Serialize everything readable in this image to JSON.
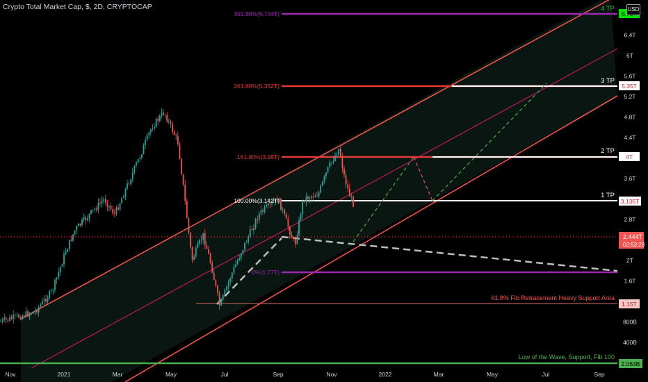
{
  "header": {
    "title": "Crypto Total Market Cap, $, 2D, CRYPTOCAP",
    "currency": "USD"
  },
  "colors": {
    "background": "#000000",
    "up": "#26a69a",
    "down": "#ef5350",
    "channel": "#f0524a",
    "midline": "#c2185b",
    "fib_purple": "#9c27b0",
    "fib_red": "#e53935",
    "fib_white": "#ffffff",
    "support": "#b35a50",
    "low_green": "#4caf50",
    "trend_dash": "#bdbdbd",
    "proj_green": "#4caf50",
    "proj_red": "#ef5350",
    "price": "#ef5350"
  },
  "chart_data": {
    "type": "candlestick",
    "title": "Crypto Total Market Cap, $, 2D, CRYPTOCAP",
    "x_axis": {
      "ticks": [
        "Nov",
        "2021",
        "Mar",
        "May",
        "Jul",
        "Sep",
        "Nov",
        "2022",
        "Mar",
        "May",
        "Jul",
        "Sep"
      ]
    },
    "y_axis": {
      "unit": "USD",
      "ticks": [
        "6.4T",
        "6T",
        "5.6T",
        "5.2T",
        "4.8T",
        "4.4T",
        "3.6T",
        "2.8T",
        "2T",
        "1.6T",
        "800B",
        "400B"
      ]
    },
    "current_price": {
      "value": "2.444T",
      "countdown": "02:53:28"
    },
    "horizontal_levels": [
      {
        "label": "361.80%(6.734T)",
        "value": "6.734T",
        "tp": "4 TP",
        "tag": "6.73T"
      },
      {
        "label": "261.80%(5.362T)",
        "value": "5.362T",
        "tp": "3 TP",
        "tag": "5.35T"
      },
      {
        "label": "161.80%(3.99T)",
        "value": "3.99T",
        "tp": "2 TP",
        "tag": "4T"
      },
      {
        "label": "100.00%(3.142T)",
        "value": "3.142T",
        "tp": "1 TP",
        "tag": "3.135T"
      },
      {
        "label": "0%(1.77T)",
        "value": "1.77T",
        "tp": "",
        "tag": ""
      },
      {
        "label": "61.8% Fib Retracement Heavy Support Area",
        "value": "1.15T",
        "tp": "",
        "tag": "1.15T"
      },
      {
        "label": "Low of the Wave, Support, Fib 100",
        "value": "2.063B",
        "tp": "",
        "tag": "2.063B"
      }
    ],
    "candles": {
      "start": "2020-10",
      "end": "2021-12",
      "anchors": [
        [
          0.8,
          0
        ],
        [
          1.0,
          50
        ],
        [
          1.4,
          75
        ],
        [
          2.2,
          95
        ],
        [
          2.6,
          108
        ],
        [
          3.2,
          150
        ],
        [
          2.9,
          165
        ],
        [
          4.0,
          200
        ],
        [
          4.6,
          218
        ],
        [
          4.9,
          236
        ],
        [
          4.3,
          256
        ],
        [
          3.4,
          264
        ],
        [
          2.0,
          276
        ],
        [
          2.5,
          292
        ],
        [
          1.9,
          304
        ],
        [
          1.1,
          316
        ],
        [
          1.7,
          332
        ],
        [
          2.2,
          348
        ],
        [
          2.9,
          372
        ],
        [
          3.2,
          400
        ],
        [
          2.3,
          424
        ],
        [
          3.2,
          436
        ],
        [
          3.3,
          458
        ],
        [
          3.8,
          472
        ],
        [
          4.2,
          488
        ],
        [
          3.7,
          494
        ],
        [
          3.3,
          502
        ],
        [
          3.05,
          510
        ]
      ]
    },
    "series": [
      {
        "name": "4 TP",
        "value": "6.734T"
      },
      {
        "name": "3 TP",
        "value": "5.362T"
      },
      {
        "name": "2 TP",
        "value": "3.99T"
      },
      {
        "name": "1 TP",
        "value": "3.142T"
      }
    ]
  }
}
